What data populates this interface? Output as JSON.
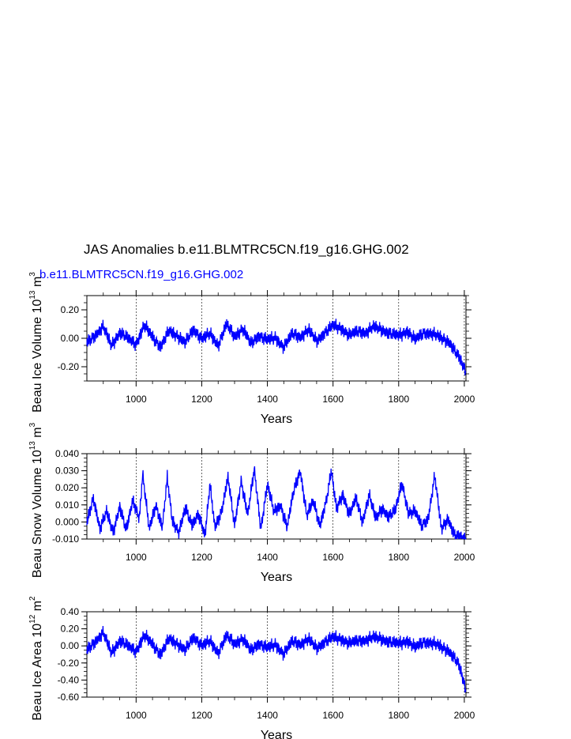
{
  "figure": {
    "title": "JAS Anomalies b.e11.BLMTRC5CN.f19_g16.GHG.002",
    "series_label": "b.e11.BLMTRC5CN.f19_g16.GHG.002",
    "series_color": "#0000ff"
  },
  "chart_data": [
    {
      "type": "line",
      "name": "ice-volume",
      "ylabel_main": "Beau Ice Volume 10",
      "ylabel_exp": "13",
      "ylabel_unit": " m",
      "ylabel_unit_exp": "3",
      "xlabel": "Years",
      "xlim": [
        850,
        2005
      ],
      "ylim": [
        -0.3,
        0.3
      ],
      "xticks": [
        1000,
        1200,
        1400,
        1600,
        1800,
        2000
      ],
      "xtick_labels": [
        "1000",
        "1200",
        "1400",
        "1600",
        "1800",
        "2000"
      ],
      "yticks": [
        -0.2,
        0.0,
        0.2
      ],
      "ytick_labels": [
        "-0.20",
        "0.00",
        "0.20"
      ],
      "ref_lines_x": [
        1000,
        1200,
        1400,
        1600,
        1800,
        2000
      ],
      "series": [
        {
          "x": [
            850,
            875,
            900,
            925,
            950,
            975,
            1000,
            1025,
            1050,
            1075,
            1100,
            1125,
            1150,
            1175,
            1200,
            1225,
            1250,
            1275,
            1300,
            1325,
            1350,
            1375,
            1400,
            1425,
            1450,
            1475,
            1500,
            1525,
            1550,
            1575,
            1600,
            1625,
            1650,
            1675,
            1700,
            1725,
            1750,
            1775,
            1800,
            1825,
            1850,
            1875,
            1900,
            1925,
            1950,
            1960,
            1970,
            1980,
            1990,
            2000,
            2005
          ],
          "y": [
            -0.03,
            0.02,
            0.08,
            -0.05,
            0.04,
            0.0,
            -0.04,
            0.09,
            0.01,
            -0.06,
            0.05,
            0.02,
            -0.03,
            0.06,
            0.0,
            0.03,
            -0.05,
            0.1,
            0.01,
            0.07,
            -0.04,
            0.02,
            -0.01,
            0.0,
            -0.06,
            0.03,
            0.01,
            0.06,
            -0.02,
            0.04,
            0.09,
            0.07,
            0.02,
            0.05,
            0.04,
            0.08,
            0.06,
            0.03,
            0.02,
            0.05,
            -0.01,
            0.04,
            0.03,
            0.01,
            -0.02,
            -0.05,
            -0.09,
            -0.12,
            -0.16,
            -0.21,
            -0.25
          ]
        }
      ]
    },
    {
      "type": "line",
      "name": "snow-volume",
      "ylabel_main": "Beau Snow Volume 10",
      "ylabel_exp": "13",
      "ylabel_unit": " m",
      "ylabel_unit_exp": "3",
      "xlabel": "Years",
      "xlim": [
        850,
        2005
      ],
      "ylim": [
        -0.01,
        0.04
      ],
      "xticks": [
        1000,
        1200,
        1400,
        1600,
        1800,
        2000
      ],
      "xtick_labels": [
        "1000",
        "1200",
        "1400",
        "1600",
        "1800",
        "2000"
      ],
      "yticks": [
        -0.01,
        0.0,
        0.01,
        0.02,
        0.03,
        0.04
      ],
      "ytick_labels": [
        "-0.010",
        "0.000",
        "0.010",
        "0.020",
        "0.030",
        "0.040"
      ],
      "ref_lines_x": [
        1000,
        1200,
        1400,
        1600,
        1800,
        2000
      ],
      "series": [
        {
          "x": [
            850,
            870,
            890,
            910,
            930,
            950,
            970,
            990,
            1010,
            1020,
            1040,
            1060,
            1080,
            1095,
            1110,
            1130,
            1150,
            1170,
            1190,
            1210,
            1225,
            1240,
            1260,
            1280,
            1300,
            1320,
            1340,
            1360,
            1380,
            1400,
            1420,
            1440,
            1460,
            1480,
            1500,
            1520,
            1540,
            1560,
            1580,
            1595,
            1610,
            1630,
            1650,
            1670,
            1690,
            1710,
            1730,
            1750,
            1770,
            1790,
            1810,
            1830,
            1850,
            1870,
            1890,
            1910,
            1930,
            1950,
            1970,
            1990,
            2005
          ],
          "y": [
            0.0,
            0.014,
            -0.004,
            0.006,
            -0.006,
            0.009,
            -0.005,
            0.013,
            0.002,
            0.028,
            -0.004,
            0.01,
            -0.003,
            0.026,
            0.001,
            -0.006,
            0.008,
            -0.002,
            0.005,
            -0.008,
            0.022,
            -0.003,
            0.006,
            0.026,
            -0.002,
            0.024,
            0.004,
            0.031,
            -0.004,
            0.022,
            0.006,
            0.01,
            -0.003,
            0.018,
            0.03,
            0.004,
            0.012,
            -0.002,
            0.013,
            0.03,
            0.008,
            0.016,
            0.004,
            0.014,
            0.0,
            0.016,
            0.002,
            0.008,
            0.003,
            0.007,
            0.023,
            0.005,
            0.006,
            -0.002,
            0.002,
            0.027,
            -0.004,
            0.002,
            -0.008,
            -0.009,
            -0.01
          ]
        }
      ]
    },
    {
      "type": "line",
      "name": "ice-area",
      "ylabel_main": "Beau Ice Area 10",
      "ylabel_exp": "12",
      "ylabel_unit": " m",
      "ylabel_unit_exp": "2",
      "xlabel": "Years",
      "xlim": [
        850,
        2005
      ],
      "ylim": [
        -0.6,
        0.4
      ],
      "xticks": [
        1000,
        1200,
        1400,
        1600,
        1800,
        2000
      ],
      "xtick_labels": [
        "1000",
        "1200",
        "1400",
        "1600",
        "1800",
        "2000"
      ],
      "yticks": [
        -0.6,
        -0.4,
        -0.2,
        0.0,
        0.2,
        0.4
      ],
      "ytick_labels": [
        "-0.60",
        "-0.40",
        "-0.20",
        "0.00",
        "0.20",
        "0.40"
      ],
      "ref_lines_x": [
        1000,
        1200,
        1400,
        1600,
        1800,
        2000
      ],
      "series": [
        {
          "x": [
            850,
            875,
            900,
            925,
            950,
            975,
            1000,
            1025,
            1050,
            1075,
            1100,
            1125,
            1150,
            1175,
            1200,
            1225,
            1250,
            1275,
            1300,
            1325,
            1350,
            1375,
            1400,
            1425,
            1450,
            1475,
            1500,
            1525,
            1550,
            1575,
            1600,
            1625,
            1650,
            1675,
            1700,
            1725,
            1750,
            1775,
            1800,
            1825,
            1850,
            1875,
            1900,
            1925,
            1950,
            1960,
            1970,
            1980,
            1990,
            2000,
            2005
          ],
          "y": [
            -0.05,
            0.05,
            0.15,
            -0.08,
            0.06,
            0.0,
            -0.06,
            0.12,
            0.02,
            -0.1,
            0.08,
            0.03,
            -0.05,
            0.1,
            0.01,
            0.05,
            -0.08,
            0.12,
            0.02,
            0.09,
            -0.06,
            0.03,
            -0.02,
            0.01,
            -0.09,
            0.05,
            0.02,
            0.08,
            -0.03,
            0.05,
            0.1,
            0.08,
            0.03,
            0.06,
            0.07,
            0.1,
            0.08,
            0.04,
            0.03,
            0.06,
            -0.02,
            0.05,
            0.03,
            0.0,
            -0.05,
            -0.1,
            -0.15,
            -0.2,
            -0.3,
            -0.45,
            -0.55
          ]
        }
      ]
    }
  ]
}
